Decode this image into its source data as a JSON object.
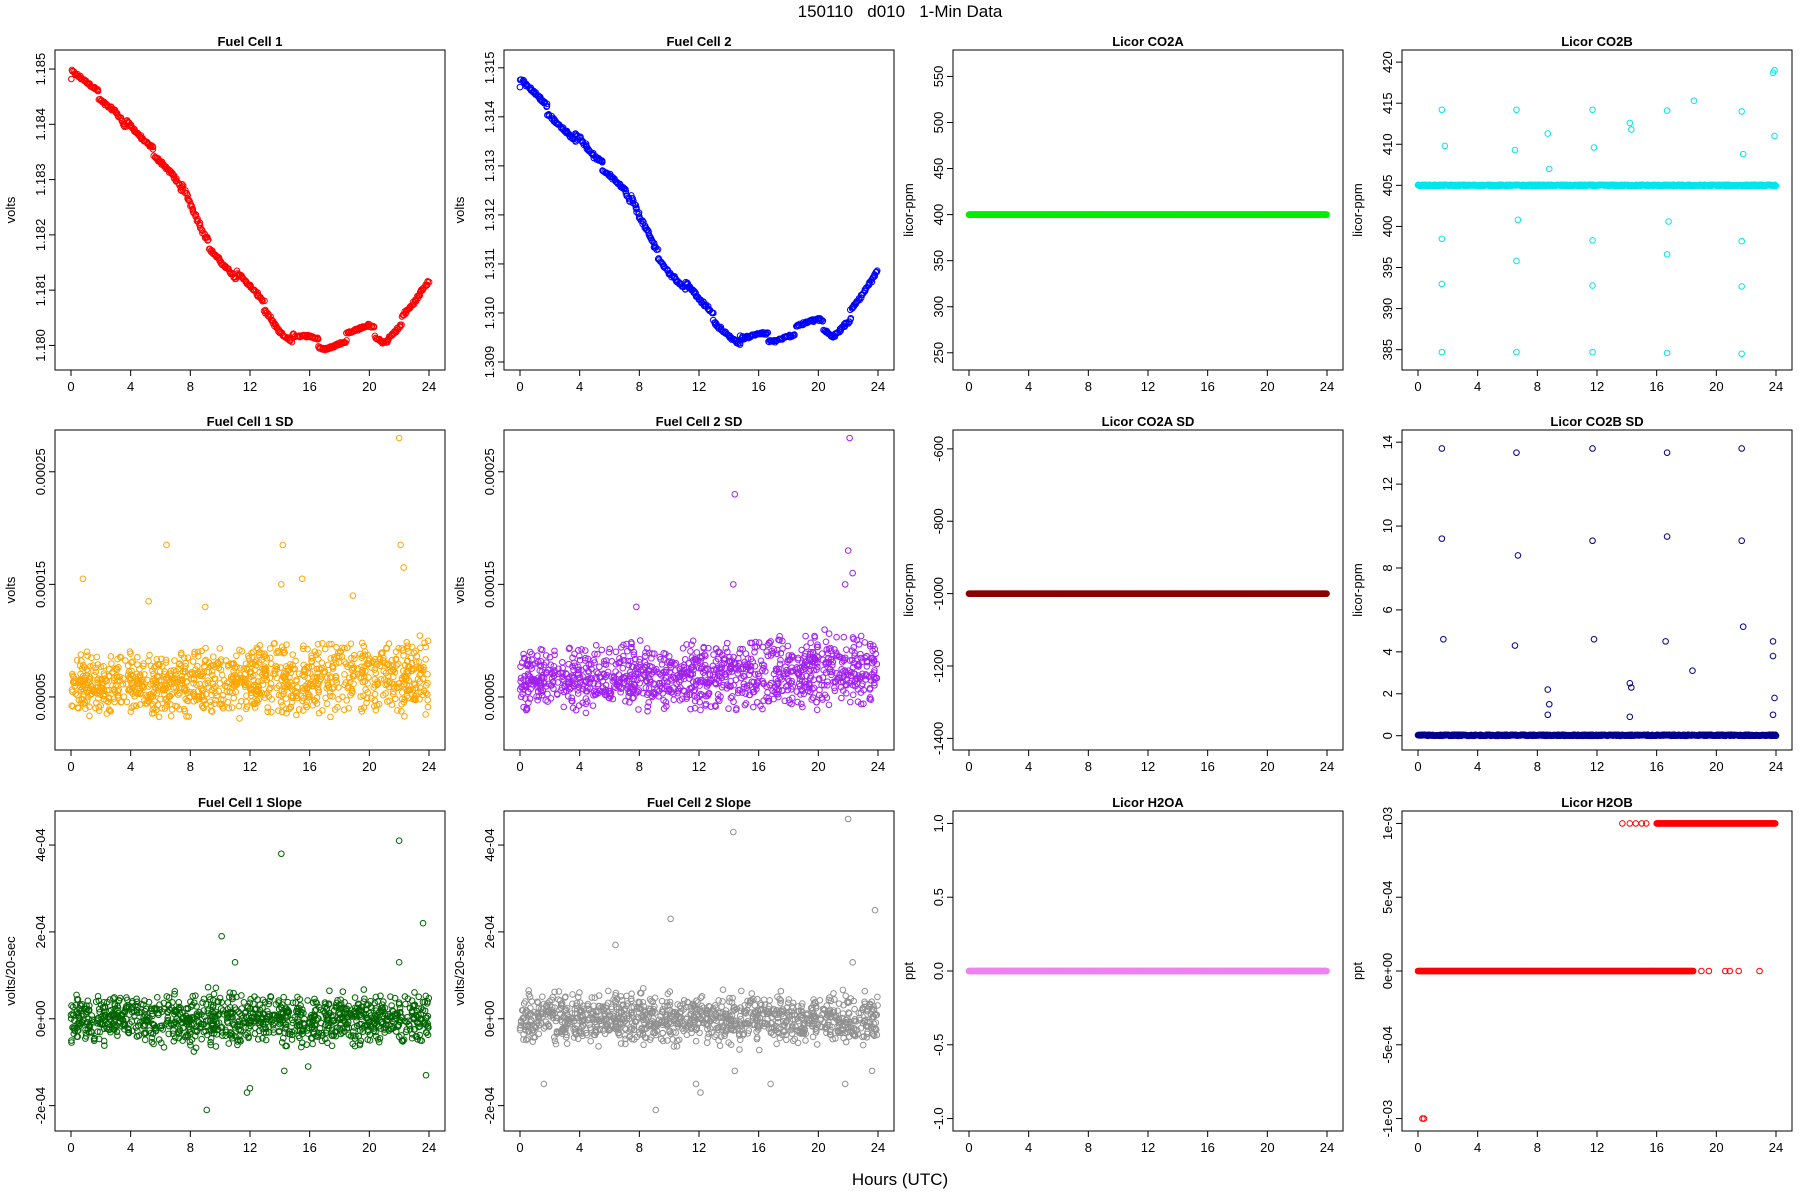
{
  "figure": {
    "title": "150110   d010   1-Min Data",
    "xlabel": "Hours (UTC)"
  },
  "chart_data": [
    {
      "type": "scatter",
      "title": "Fuel Cell 1",
      "ylabel": "volts",
      "color": "#ff0000",
      "xlim": [
        0,
        24
      ],
      "xticks": [
        0,
        4,
        8,
        12,
        16,
        20,
        24
      ],
      "xtick_labels": [
        "0",
        "4",
        "8",
        "12",
        "16",
        "20",
        "24"
      ],
      "ylim": [
        1.1797,
        1.1852
      ],
      "yticks": [
        1.18,
        1.181,
        1.182,
        1.183,
        1.184,
        1.185
      ],
      "ytick_labels": [
        "1.180",
        "1.181",
        "1.182",
        "1.183",
        "1.184",
        "1.185"
      ],
      "x": [
        0,
        1,
        2,
        3,
        4,
        5,
        6,
        7,
        8,
        9,
        10,
        11,
        12,
        13,
        14,
        15,
        16,
        17,
        18,
        19,
        20,
        21,
        22,
        23,
        24
      ],
      "y": [
        1.1849,
        1.1847,
        1.1845,
        1.1843,
        1.1839,
        1.1836,
        1.1834,
        1.1831,
        1.1825,
        1.1819,
        1.1816,
        1.1813,
        1.181,
        1.1807,
        1.1803,
        1.1801,
        1.1801,
        1.18,
        1.1801,
        1.1802,
        1.1803,
        1.1801,
        1.1804,
        1.1807,
        1.1811
      ]
    },
    {
      "type": "scatter",
      "title": "Fuel Cell 2",
      "ylabel": "volts",
      "color": "#0000ff",
      "xlim": [
        0,
        24
      ],
      "xticks": [
        0,
        4,
        8,
        12,
        16,
        20,
        24
      ],
      "xtick_labels": [
        "0",
        "4",
        "8",
        "12",
        "16",
        "20",
        "24"
      ],
      "ylim": [
        1.309,
        1.3152
      ],
      "yticks": [
        1.309,
        1.31,
        1.311,
        1.312,
        1.313,
        1.314,
        1.315
      ],
      "ytick_labels": [
        "1.309",
        "1.310",
        "1.311",
        "1.312",
        "1.313",
        "1.314",
        "1.315"
      ],
      "x": [
        0,
        1,
        2,
        3,
        4,
        5,
        6,
        7,
        8,
        9,
        10,
        11,
        12,
        13,
        14,
        15,
        16,
        17,
        18,
        19,
        20,
        21,
        22,
        23,
        24
      ],
      "y": [
        1.3147,
        1.3144,
        1.3141,
        1.3138,
        1.3135,
        1.3131,
        1.3129,
        1.3126,
        1.3119,
        1.3113,
        1.3109,
        1.3106,
        1.3102,
        1.3099,
        1.3096,
        1.3094,
        1.3095,
        1.3095,
        1.3096,
        1.3097,
        1.3098,
        1.3096,
        1.3099,
        1.3103,
        1.3108
      ]
    },
    {
      "type": "scatter",
      "title": "Licor CO2A",
      "ylabel": "licor-ppm",
      "color": "#00ee00",
      "xlim": [
        0,
        24
      ],
      "xticks": [
        0,
        4,
        8,
        12,
        16,
        20,
        24
      ],
      "xtick_labels": [
        "0",
        "4",
        "8",
        "12",
        "16",
        "20",
        "24"
      ],
      "ylim": [
        240,
        570
      ],
      "yticks": [
        250,
        300,
        350,
        400,
        450,
        500,
        550
      ],
      "ytick_labels": [
        "250",
        "300",
        "350",
        "400",
        "450",
        "500",
        "550"
      ],
      "x": [
        0,
        24
      ],
      "y": [
        400,
        400
      ]
    },
    {
      "type": "scatter",
      "title": "Licor CO2B",
      "ylabel": "licor-ppm",
      "color": "#00e5ee",
      "xlim": [
        0,
        24
      ],
      "xticks": [
        0,
        4,
        8,
        12,
        16,
        20,
        24
      ],
      "xtick_labels": [
        "0",
        "4",
        "8",
        "12",
        "16",
        "20",
        "24"
      ],
      "ylim": [
        383.5,
        420.5
      ],
      "yticks": [
        385,
        390,
        395,
        400,
        405,
        410,
        415,
        420
      ],
      "ytick_labels": [
        "385",
        "390",
        "395",
        "400",
        "405",
        "410",
        "415",
        "420"
      ],
      "baseline": 405,
      "x": [
        1.6,
        1.6,
        1.6,
        1.6,
        1.8,
        6.6,
        6.6,
        6.6,
        6.7,
        6.5,
        8.7,
        8.8,
        11.7,
        11.7,
        11.7,
        11.7,
        11.8,
        14.2,
        14.3,
        16.7,
        16.7,
        16.7,
        16.8,
        18.5,
        21.7,
        21.7,
        21.7,
        21.7,
        21.8,
        23.8,
        23.9,
        23.9
      ],
      "y": [
        414.2,
        384.7,
        393.0,
        398.5,
        409.8,
        414.2,
        384.7,
        395.8,
        400.8,
        409.3,
        411.3,
        407.0,
        414.2,
        384.7,
        392.8,
        398.3,
        409.6,
        412.6,
        411.8,
        414.1,
        384.6,
        396.6,
        400.6,
        415.3,
        414.0,
        384.5,
        392.7,
        398.2,
        408.8,
        418.7,
        419.0,
        411.0
      ]
    },
    {
      "type": "scatter",
      "title": "Fuel Cell 1 SD",
      "ylabel": "volts",
      "color": "#ffa500",
      "xlim": [
        0,
        24
      ],
      "xticks": [
        0,
        4,
        8,
        12,
        16,
        20,
        24
      ],
      "xtick_labels": [
        "0",
        "4",
        "8",
        "12",
        "16",
        "20",
        "24"
      ],
      "ylim": [
        1e-05,
        0.00028
      ],
      "yticks": [
        5e-05,
        0.00015,
        0.00025
      ],
      "ytick_labels": [
        "0.00005",
        "0.00015",
        "0.00025"
      ],
      "base_low": 4.5e-05,
      "base_high": 7.5e-05,
      "x": [
        0.8,
        5.2,
        6.4,
        9.0,
        14.1,
        14.2,
        15.5,
        18.9,
        22.0,
        22.1,
        22.3
      ],
      "y": [
        0.000155,
        0.000135,
        0.000185,
        0.00013,
        0.00015,
        0.000185,
        0.000155,
        0.00014,
        0.00028,
        0.000185,
        0.000165
      ]
    },
    {
      "type": "scatter",
      "title": "Fuel Cell 2 SD",
      "ylabel": "volts",
      "color": "#a020f0",
      "xlim": [
        0,
        24
      ],
      "xticks": [
        0,
        4,
        8,
        12,
        16,
        20,
        24
      ],
      "xtick_labels": [
        "0",
        "4",
        "8",
        "12",
        "16",
        "20",
        "24"
      ],
      "ylim": [
        1e-05,
        0.00028
      ],
      "yticks": [
        5e-05,
        0.00015,
        0.00025
      ],
      "ytick_labels": [
        "0.00005",
        "0.00015",
        "0.00025"
      ],
      "base_low": 5e-05,
      "base_high": 8e-05,
      "x": [
        7.8,
        14.4,
        14.3,
        21.8,
        22.0,
        22.1,
        22.3
      ],
      "y": [
        0.00013,
        0.00023,
        0.00015,
        0.00015,
        0.00018,
        0.00028,
        0.00016
      ]
    },
    {
      "type": "scatter",
      "title": "Licor CO2A SD",
      "ylabel": "licor-ppm",
      "color": "#8b0000",
      "xlim": [
        0,
        24
      ],
      "xticks": [
        0,
        4,
        8,
        12,
        16,
        20,
        24
      ],
      "xtick_labels": [
        "0",
        "4",
        "8",
        "12",
        "16",
        "20",
        "24"
      ],
      "ylim": [
        -1410,
        -570
      ],
      "yticks": [
        -1400,
        -1200,
        -1000,
        -800,
        -600
      ],
      "ytick_labels": [
        "-1400",
        "-1200",
        "-1000",
        "-800",
        "-600"
      ],
      "x": [
        0,
        24
      ],
      "y": [
        -1000,
        -1000
      ]
    },
    {
      "type": "scatter",
      "title": "Licor CO2B SD",
      "ylabel": "licor-ppm",
      "color": "#00008b",
      "xlim": [
        0,
        24
      ],
      "xticks": [
        0,
        4,
        8,
        12,
        16,
        20,
        24
      ],
      "xtick_labels": [
        "0",
        "4",
        "8",
        "12",
        "16",
        "20",
        "24"
      ],
      "ylim": [
        -0.3,
        14.2
      ],
      "yticks": [
        0,
        2,
        4,
        6,
        8,
        10,
        12,
        14
      ],
      "ytick_labels": [
        "0",
        "2",
        "4",
        "6",
        "8",
        "10",
        "12",
        "14"
      ],
      "baseline": 0.02,
      "x": [
        1.6,
        1.6,
        1.7,
        6.6,
        6.7,
        6.5,
        8.7,
        8.8,
        8.7,
        11.7,
        11.7,
        11.8,
        14.2,
        14.3,
        14.2,
        16.7,
        16.7,
        16.6,
        18.4,
        21.7,
        21.7,
        21.8,
        23.8,
        23.8,
        23.9,
        23.8
      ],
      "y": [
        13.7,
        9.4,
        4.6,
        13.5,
        8.6,
        4.3,
        2.2,
        1.5,
        1.0,
        13.7,
        9.3,
        4.6,
        2.5,
        2.3,
        0.9,
        13.5,
        9.5,
        4.5,
        3.1,
        13.7,
        9.3,
        5.2,
        4.5,
        3.8,
        1.8,
        1.0
      ]
    },
    {
      "type": "scatter",
      "title": "Fuel Cell 1 Slope",
      "ylabel": "volts/20-sec",
      "color": "#006400",
      "xlim": [
        0,
        24
      ],
      "xticks": [
        0,
        4,
        8,
        12,
        16,
        20,
        24
      ],
      "xtick_labels": [
        "0",
        "4",
        "8",
        "12",
        "16",
        "20",
        "24"
      ],
      "ylim": [
        -0.00024,
        0.00046
      ],
      "yticks": [
        -0.0002,
        0,
        0.0002,
        0.0004
      ],
      "ytick_labels": [
        "-2e-04",
        "0e+00",
        "2e-04",
        "4e-04"
      ],
      "spread": 6e-05,
      "x": [
        9.1,
        10.1,
        11.0,
        11.8,
        12.0,
        14.1,
        14.3,
        15.9,
        22.0,
        22.0,
        23.6,
        23.8
      ],
      "y": [
        -0.00021,
        0.00019,
        0.00013,
        -0.00017,
        -0.00016,
        0.00038,
        -0.00012,
        -0.00011,
        0.00041,
        0.00013,
        0.00022,
        -0.00013
      ]
    },
    {
      "type": "scatter",
      "title": "Fuel Cell 2 Slope",
      "ylabel": "volts/20-sec",
      "color": "#909090",
      "xlim": [
        0,
        24
      ],
      "xticks": [
        0,
        4,
        8,
        12,
        16,
        20,
        24
      ],
      "xtick_labels": [
        "0",
        "4",
        "8",
        "12",
        "16",
        "20",
        "24"
      ],
      "ylim": [
        -0.00024,
        0.00046
      ],
      "yticks": [
        -0.0002,
        0,
        0.0002,
        0.0004
      ],
      "ytick_labels": [
        "-2e-04",
        "0e+00",
        "2e-04",
        "4e-04"
      ],
      "spread": 6e-05,
      "x": [
        1.6,
        6.4,
        9.1,
        10.1,
        11.8,
        12.1,
        14.3,
        14.4,
        16.8,
        21.8,
        22.0,
        22.3,
        23.8,
        23.6
      ],
      "y": [
        -0.00015,
        0.00017,
        -0.00021,
        0.00023,
        -0.00015,
        -0.00017,
        0.00043,
        -0.00012,
        -0.00015,
        -0.00015,
        0.00046,
        0.00013,
        0.00025,
        -0.00012
      ]
    },
    {
      "type": "scatter",
      "title": "Licor H2OA",
      "ylabel": "ppt",
      "color": "#ee82ee",
      "xlim": [
        0,
        24
      ],
      "xticks": [
        0,
        4,
        8,
        12,
        16,
        20,
        24
      ],
      "xtick_labels": [
        "0",
        "4",
        "8",
        "12",
        "16",
        "20",
        "24"
      ],
      "ylim": [
        -1.03,
        1.03
      ],
      "yticks": [
        -1.0,
        -0.5,
        0.0,
        0.5,
        1.0
      ],
      "ytick_labels": [
        "-1.0",
        "-0.5",
        "0.0",
        "0.5",
        "1.0"
      ],
      "x": [
        0,
        24
      ],
      "y": [
        0,
        0
      ]
    },
    {
      "type": "scatter",
      "title": "Licor H2OB",
      "ylabel": "ppt",
      "color": "#ff0000",
      "xlim": [
        0,
        24
      ],
      "xticks": [
        0,
        4,
        8,
        12,
        16,
        20,
        24
      ],
      "xtick_labels": [
        "0",
        "4",
        "8",
        "12",
        "16",
        "20",
        "24"
      ],
      "ylim": [
        -0.00103,
        0.00103
      ],
      "yticks": [
        -0.001,
        -0.0005,
        0,
        0.0005,
        0.001
      ],
      "ytick_labels": [
        "-1e-03",
        "-5e-04",
        "0e+00",
        "5e-04",
        "1e-03"
      ],
      "segments": [
        {
          "x0": 0,
          "x1": 18.5,
          "y": 0
        },
        {
          "x0": 16,
          "x1": 24,
          "y": 0.001
        }
      ],
      "x": [
        0.3,
        0.4,
        13.7,
        14.2,
        14.6,
        15.0,
        15.3,
        19.0,
        19.5,
        20.6,
        20.9,
        21.5,
        22.9
      ],
      "y": [
        -0.001,
        -0.001,
        0.001,
        0.001,
        0.001,
        0.001,
        0.001,
        0,
        0,
        0,
        0,
        0,
        0
      ]
    }
  ]
}
